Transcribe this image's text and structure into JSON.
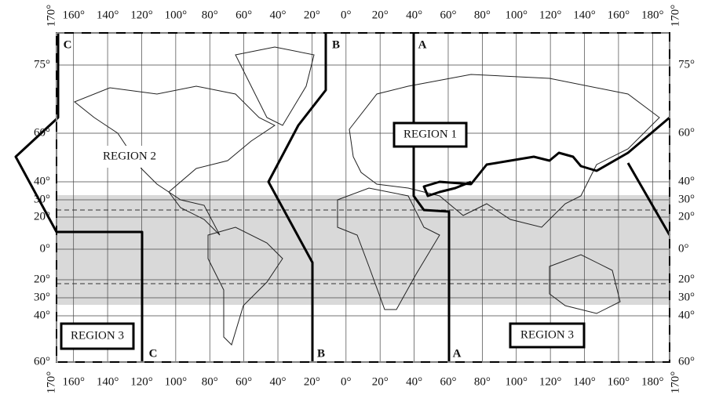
{
  "map": {
    "longitude_labels_top": [
      "170°",
      "160°",
      "140°",
      "120°",
      "100°",
      "80°",
      "60°",
      "40°",
      "20°",
      "0°",
      "20°",
      "40°",
      "60°",
      "80°",
      "100°",
      "120°",
      "140°",
      "160°",
      "180°",
      "170°"
    ],
    "longitude_labels_bottom": [
      "170°",
      "160°",
      "140°",
      "120°",
      "100°",
      "80°",
      "60°",
      "40°",
      "20°",
      "0°",
      "20°",
      "40°",
      "60°",
      "80°",
      "100°",
      "120°",
      "140°",
      "160°",
      "180°",
      "170°"
    ],
    "latitude_labels_left": [
      "75°",
      "60°",
      "40°",
      "30°",
      "20°",
      "0°",
      "20°",
      "30°",
      "40°",
      "60°"
    ],
    "latitude_labels_right": [
      "75°",
      "60°",
      "40°",
      "30°",
      "20°",
      "0°",
      "20°",
      "30°",
      "40°",
      "60°"
    ],
    "regions": [
      "REGION 1",
      "REGION 2",
      "REGION 3",
      "REGION 3"
    ],
    "boundary_labels_top": [
      "C",
      "B",
      "A"
    ],
    "boundary_labels_bottom": [
      "C",
      "B",
      "A"
    ]
  }
}
